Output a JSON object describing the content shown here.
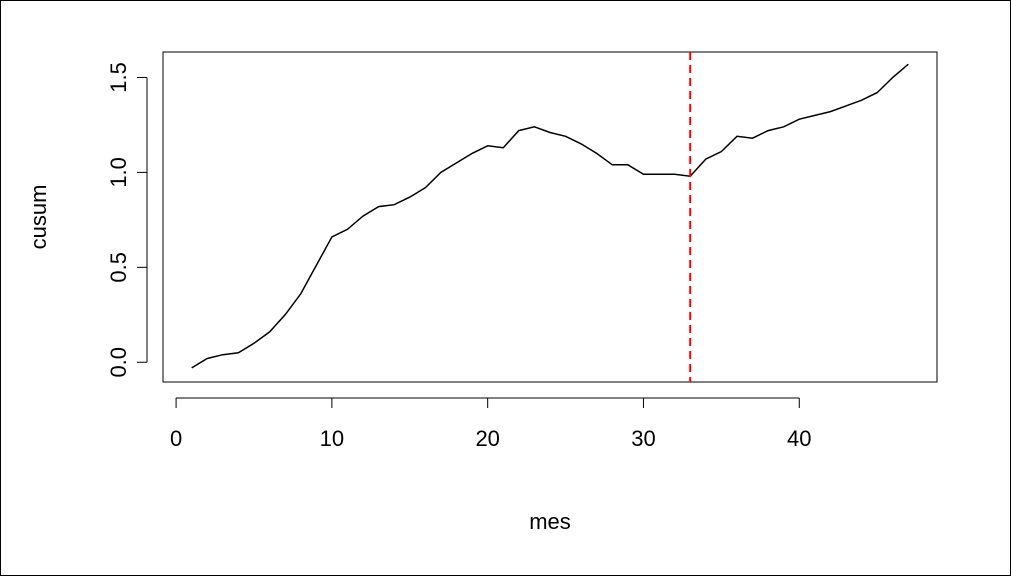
{
  "chart_data": {
    "type": "line",
    "x_label": "mes",
    "y_label": "cusum",
    "x": [
      1,
      2,
      3,
      4,
      5,
      6,
      7,
      8,
      9,
      10,
      11,
      12,
      13,
      14,
      15,
      16,
      17,
      18,
      19,
      20,
      21,
      22,
      23,
      24,
      25,
      26,
      27,
      28,
      29,
      30,
      31,
      32,
      33,
      34,
      35,
      36,
      37,
      38,
      39,
      40,
      41,
      42,
      43,
      44,
      45,
      46,
      47
    ],
    "values": [
      -0.03,
      0.02,
      0.04,
      0.05,
      0.1,
      0.16,
      0.25,
      0.36,
      0.51,
      0.66,
      0.7,
      0.77,
      0.82,
      0.83,
      0.87,
      0.92,
      1.0,
      1.05,
      1.1,
      1.14,
      1.13,
      1.22,
      1.24,
      1.21,
      1.19,
      1.15,
      1.1,
      1.04,
      1.04,
      0.99,
      0.99,
      0.99,
      0.98,
      1.07,
      1.11,
      1.19,
      1.18,
      1.22,
      1.24,
      1.28,
      1.3,
      1.32,
      1.35,
      1.38,
      1.42,
      1.5,
      1.57
    ],
    "color": "#000000",
    "xlim": [
      -0.84,
      48.84
    ],
    "xticks": [
      0,
      10,
      20,
      30,
      40
    ],
    "ylim": [
      -0.104,
      1.634
    ],
    "yticks": [
      {
        "value": 0,
        "label": "0.0"
      },
      0.5,
      {
        "value": 1,
        "label": "1.0"
      },
      1.5
    ],
    "vline": 33,
    "vline_color": "#ff0000"
  }
}
